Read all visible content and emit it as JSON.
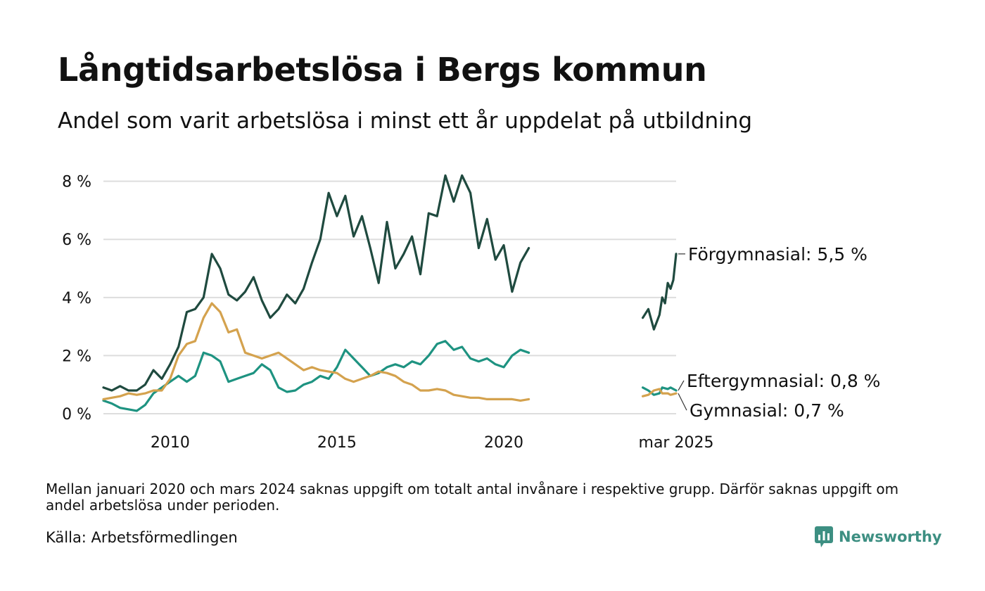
{
  "header": {
    "title": "Långtidsarbetslösa i Bergs kommun",
    "subtitle": "Andel som varit arbetslösa i minst ett år uppdelat på utbildning"
  },
  "footer": {
    "note": "Mellan januari 2020 och mars 2024 saknas uppgift om totalt antal invånare i respektive grupp. Därför saknas uppgift om andel arbetslösa under perioden.",
    "source": "Källa: Arbetsförmedlingen",
    "brand": "Newsworthy",
    "brand_icon": "newsworthy-logo-icon",
    "brand_color": "#3d8f82"
  },
  "chart_data": {
    "type": "line",
    "xlim": [
      "2008-01",
      "2025-03"
    ],
    "ylim": [
      0,
      8.5
    ],
    "yticks": [
      {
        "value": 0,
        "label": "0 %"
      },
      {
        "value": 2,
        "label": "2 %"
      },
      {
        "value": 4,
        "label": "4 %"
      },
      {
        "value": 6,
        "label": "6 %"
      },
      {
        "value": 8,
        "label": "8 %"
      }
    ],
    "xticks": [
      {
        "value": "2010-01",
        "label": "2010"
      },
      {
        "value": "2015-01",
        "label": "2015"
      },
      {
        "value": "2020-01",
        "label": "2020"
      },
      {
        "value": "2025-03",
        "label": "mar 2025"
      }
    ],
    "grid": true,
    "gridColor": "#dddddd",
    "series": [
      {
        "name": "Förgymnasial",
        "label": "Förgymnasial: 5,5 %",
        "color": "#1f4a3f",
        "segments": [
          [
            [
              "2008-01",
              0.9
            ],
            [
              "2008-04",
              0.8
            ],
            [
              "2008-07",
              0.95
            ],
            [
              "2008-10",
              0.8
            ],
            [
              "2009-01",
              0.8
            ],
            [
              "2009-04",
              1.0
            ],
            [
              "2009-07",
              1.5
            ],
            [
              "2009-10",
              1.2
            ],
            [
              "2010-01",
              1.7
            ],
            [
              "2010-04",
              2.3
            ],
            [
              "2010-07",
              3.5
            ],
            [
              "2010-10",
              3.6
            ],
            [
              "2011-01",
              4.0
            ],
            [
              "2011-04",
              5.5
            ],
            [
              "2011-07",
              5.0
            ],
            [
              "2011-10",
              4.1
            ],
            [
              "2012-01",
              3.9
            ],
            [
              "2012-04",
              4.2
            ],
            [
              "2012-07",
              4.7
            ],
            [
              "2012-10",
              3.9
            ],
            [
              "2013-01",
              3.3
            ],
            [
              "2013-04",
              3.6
            ],
            [
              "2013-07",
              4.1
            ],
            [
              "2013-10",
              3.8
            ],
            [
              "2014-01",
              4.3
            ],
            [
              "2014-04",
              5.2
            ],
            [
              "2014-07",
              6.0
            ],
            [
              "2014-10",
              7.6
            ],
            [
              "2015-01",
              6.8
            ],
            [
              "2015-04",
              7.5
            ],
            [
              "2015-07",
              6.1
            ],
            [
              "2015-10",
              6.8
            ],
            [
              "2016-01",
              5.7
            ],
            [
              "2016-04",
              4.5
            ],
            [
              "2016-07",
              6.6
            ],
            [
              "2016-10",
              5.0
            ],
            [
              "2017-01",
              5.5
            ],
            [
              "2017-04",
              6.1
            ],
            [
              "2017-07",
              4.8
            ],
            [
              "2017-10",
              6.9
            ],
            [
              "2018-01",
              6.8
            ],
            [
              "2018-04",
              8.2
            ],
            [
              "2018-07",
              7.3
            ],
            [
              "2018-10",
              8.2
            ],
            [
              "2019-01",
              7.6
            ],
            [
              "2019-04",
              5.7
            ],
            [
              "2019-07",
              6.7
            ],
            [
              "2019-10",
              5.3
            ],
            [
              "2020-01",
              5.8
            ],
            [
              "2020-04",
              4.2
            ],
            [
              "2020-07",
              5.2
            ],
            [
              "2020-10",
              5.7
            ]
          ],
          [
            [
              "2024-03",
              3.3
            ],
            [
              "2024-05",
              3.6
            ],
            [
              "2024-07",
              2.9
            ],
            [
              "2024-09",
              3.4
            ],
            [
              "2024-10",
              4.0
            ],
            [
              "2024-11",
              3.8
            ],
            [
              "2024-12",
              4.5
            ],
            [
              "2025-01",
              4.3
            ],
            [
              "2025-02",
              4.6
            ],
            [
              "2025-03",
              5.5
            ]
          ]
        ]
      },
      {
        "name": "Eftergymnasial",
        "label": "Eftergymnasial: 0,8 %",
        "color": "#1e9381",
        "segments": [
          [
            [
              "2008-01",
              0.45
            ],
            [
              "2008-04",
              0.35
            ],
            [
              "2008-07",
              0.2
            ],
            [
              "2008-10",
              0.15
            ],
            [
              "2009-01",
              0.1
            ],
            [
              "2009-04",
              0.3
            ],
            [
              "2009-07",
              0.7
            ],
            [
              "2009-10",
              0.9
            ],
            [
              "2010-01",
              1.1
            ],
            [
              "2010-04",
              1.3
            ],
            [
              "2010-07",
              1.1
            ],
            [
              "2010-10",
              1.3
            ],
            [
              "2011-01",
              2.1
            ],
            [
              "2011-04",
              2.0
            ],
            [
              "2011-07",
              1.8
            ],
            [
              "2011-10",
              1.1
            ],
            [
              "2012-01",
              1.2
            ],
            [
              "2012-04",
              1.3
            ],
            [
              "2012-07",
              1.4
            ],
            [
              "2012-10",
              1.7
            ],
            [
              "2013-01",
              1.5
            ],
            [
              "2013-04",
              0.9
            ],
            [
              "2013-07",
              0.75
            ],
            [
              "2013-10",
              0.8
            ],
            [
              "2014-01",
              1.0
            ],
            [
              "2014-04",
              1.1
            ],
            [
              "2014-07",
              1.3
            ],
            [
              "2014-10",
              1.2
            ],
            [
              "2015-01",
              1.6
            ],
            [
              "2015-04",
              2.2
            ],
            [
              "2015-07",
              1.9
            ],
            [
              "2015-10",
              1.6
            ],
            [
              "2016-01",
              1.3
            ],
            [
              "2016-04",
              1.4
            ],
            [
              "2016-07",
              1.6
            ],
            [
              "2016-10",
              1.7
            ],
            [
              "2017-01",
              1.6
            ],
            [
              "2017-04",
              1.8
            ],
            [
              "2017-07",
              1.7
            ],
            [
              "2017-10",
              2.0
            ],
            [
              "2018-01",
              2.4
            ],
            [
              "2018-04",
              2.5
            ],
            [
              "2018-07",
              2.2
            ],
            [
              "2018-10",
              2.3
            ],
            [
              "2019-01",
              1.9
            ],
            [
              "2019-04",
              1.8
            ],
            [
              "2019-07",
              1.9
            ],
            [
              "2019-10",
              1.7
            ],
            [
              "2020-01",
              1.6
            ],
            [
              "2020-04",
              2.0
            ],
            [
              "2020-07",
              2.2
            ],
            [
              "2020-10",
              2.1
            ]
          ],
          [
            [
              "2024-03",
              0.9
            ],
            [
              "2024-05",
              0.8
            ],
            [
              "2024-07",
              0.65
            ],
            [
              "2024-09",
              0.7
            ],
            [
              "2024-10",
              0.9
            ],
            [
              "2024-12",
              0.85
            ],
            [
              "2025-01",
              0.9
            ],
            [
              "2025-03",
              0.8
            ]
          ]
        ]
      },
      {
        "name": "Gymnasial",
        "label": "Gymnasial: 0,7 %",
        "color": "#d4a24e",
        "segments": [
          [
            [
              "2008-01",
              0.5
            ],
            [
              "2008-04",
              0.55
            ],
            [
              "2008-07",
              0.6
            ],
            [
              "2008-10",
              0.7
            ],
            [
              "2009-01",
              0.65
            ],
            [
              "2009-04",
              0.7
            ],
            [
              "2009-07",
              0.8
            ],
            [
              "2009-10",
              0.8
            ],
            [
              "2010-01",
              1.2
            ],
            [
              "2010-04",
              2.0
            ],
            [
              "2010-07",
              2.4
            ],
            [
              "2010-10",
              2.5
            ],
            [
              "2011-01",
              3.3
            ],
            [
              "2011-04",
              3.8
            ],
            [
              "2011-07",
              3.5
            ],
            [
              "2011-10",
              2.8
            ],
            [
              "2012-01",
              2.9
            ],
            [
              "2012-04",
              2.1
            ],
            [
              "2012-07",
              2.0
            ],
            [
              "2012-10",
              1.9
            ],
            [
              "2013-01",
              2.0
            ],
            [
              "2013-04",
              2.1
            ],
            [
              "2013-07",
              1.9
            ],
            [
              "2013-10",
              1.7
            ],
            [
              "2014-01",
              1.5
            ],
            [
              "2014-04",
              1.6
            ],
            [
              "2014-07",
              1.5
            ],
            [
              "2014-10",
              1.45
            ],
            [
              "2015-01",
              1.4
            ],
            [
              "2015-04",
              1.2
            ],
            [
              "2015-07",
              1.1
            ],
            [
              "2015-10",
              1.2
            ],
            [
              "2016-01",
              1.3
            ],
            [
              "2016-04",
              1.45
            ],
            [
              "2016-07",
              1.4
            ],
            [
              "2016-10",
              1.3
            ],
            [
              "2017-01",
              1.1
            ],
            [
              "2017-04",
              1.0
            ],
            [
              "2017-07",
              0.8
            ],
            [
              "2017-10",
              0.8
            ],
            [
              "2018-01",
              0.85
            ],
            [
              "2018-04",
              0.8
            ],
            [
              "2018-07",
              0.65
            ],
            [
              "2018-10",
              0.6
            ],
            [
              "2019-01",
              0.55
            ],
            [
              "2019-04",
              0.55
            ],
            [
              "2019-07",
              0.5
            ],
            [
              "2019-10",
              0.5
            ],
            [
              "2020-01",
              0.5
            ],
            [
              "2020-04",
              0.5
            ],
            [
              "2020-07",
              0.45
            ],
            [
              "2020-10",
              0.5
            ]
          ],
          [
            [
              "2024-03",
              0.6
            ],
            [
              "2024-05",
              0.65
            ],
            [
              "2024-07",
              0.8
            ],
            [
              "2024-09",
              0.85
            ],
            [
              "2024-10",
              0.7
            ],
            [
              "2024-12",
              0.7
            ],
            [
              "2025-01",
              0.65
            ],
            [
              "2025-03",
              0.7
            ]
          ]
        ]
      }
    ]
  }
}
